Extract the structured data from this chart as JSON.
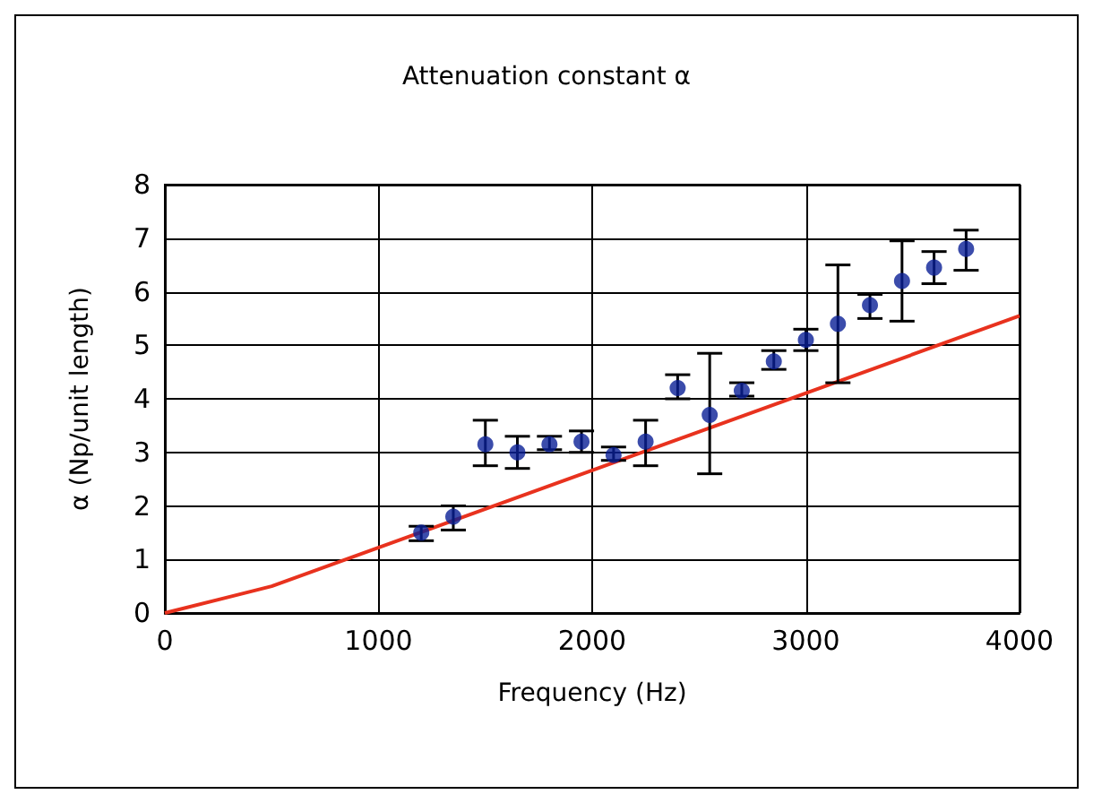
{
  "chart_data": {
    "type": "scatter",
    "title": "Attenuation constant α",
    "xlabel": "Frequency (Hz)",
    "ylabel": "α (Np/unit length)",
    "xlim": [
      0,
      4000
    ],
    "xticks": [
      0,
      1000,
      2000,
      3000,
      4000
    ],
    "ylim": [
      0,
      8
    ],
    "yticks": [
      0,
      1,
      2,
      3,
      4,
      5,
      6,
      7,
      8
    ],
    "grid": true,
    "series": [
      {
        "color": "#0a1f96",
        "marker": "circle",
        "x": [
          1200,
          1350,
          1500,
          1650,
          1800,
          1950,
          2100,
          2250,
          2400,
          2550,
          2700,
          2850,
          3000,
          3150,
          3300,
          3450,
          3600,
          3750
        ],
        "values": [
          1.5,
          1.8,
          3.15,
          3.0,
          3.15,
          3.2,
          2.95,
          3.2,
          4.2,
          3.7,
          4.15,
          4.7,
          5.1,
          5.4,
          5.75,
          6.2,
          6.45,
          6.8
        ],
        "errors": [
          [
            1.35,
            1.62
          ],
          [
            1.55,
            2.0
          ],
          [
            2.75,
            3.6
          ],
          [
            2.7,
            3.3
          ],
          [
            3.05,
            3.3
          ],
          [
            3.0,
            3.4
          ],
          [
            2.85,
            3.1
          ],
          [
            2.75,
            3.6
          ],
          [
            4.0,
            4.45
          ],
          [
            2.6,
            4.85
          ],
          [
            4.05,
            4.3
          ],
          [
            4.55,
            4.9
          ],
          [
            4.9,
            5.3
          ],
          [
            4.3,
            6.5
          ],
          [
            5.5,
            5.95
          ],
          [
            5.45,
            6.95
          ],
          [
            6.15,
            6.75
          ],
          [
            6.4,
            7.15
          ]
        ]
      },
      {
        "type": "line",
        "color": "#e8321e",
        "marker": "none",
        "line_style": "solid",
        "x": [
          0,
          500,
          4000
        ],
        "values": [
          0,
          0.5,
          5.55
        ]
      }
    ]
  }
}
